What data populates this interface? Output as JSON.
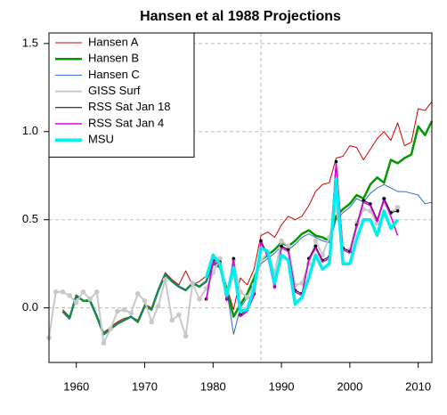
{
  "chart_data": {
    "type": "line",
    "title": "Hansen et al 1988 Projections",
    "xlim": [
      1956,
      2012
    ],
    "xticks": [
      1960,
      1970,
      1980,
      1990,
      2000,
      2010
    ],
    "ylim": [
      -0.31,
      1.56
    ],
    "yticks": [
      {
        "value": 0,
        "label": "0.0"
      },
      0.5,
      {
        "value": 1,
        "label": "1.0"
      },
      1.5
    ],
    "grid": true,
    "vline": 1987,
    "legend": "top-left",
    "series": [
      {
        "name": "Hansen A",
        "color": "#cc0000",
        "width": 1,
        "x": [
          1958,
          1959,
          1960,
          1961,
          1962,
          1963,
          1964,
          1965,
          1966,
          1967,
          1968,
          1969,
          1970,
          1971,
          1972,
          1973,
          1974,
          1975,
          1976,
          1977,
          1978,
          1979,
          1980,
          1981,
          1982,
          1983,
          1984,
          1985,
          1986,
          1987,
          1988,
          1989,
          1990,
          1991,
          1992,
          1993,
          1994,
          1995,
          1996,
          1997,
          1998,
          1999,
          2000,
          2001,
          2002,
          2003,
          2004,
          2005,
          2006,
          2007,
          2008,
          2009,
          2010,
          2011,
          2012
        ],
        "values": [
          -0.01,
          -0.05,
          0.06,
          0.04,
          0.05,
          -0.04,
          -0.14,
          -0.11,
          -0.08,
          -0.06,
          -0.05,
          -0.07,
          0.02,
          0.0,
          0.11,
          0.2,
          0.16,
          0.13,
          0.21,
          0.13,
          0.15,
          0.18,
          0.26,
          0.24,
          0.12,
          -0.01,
          0.17,
          0.13,
          0.22,
          0.41,
          0.43,
          0.4,
          0.47,
          0.52,
          0.5,
          0.52,
          0.58,
          0.66,
          0.7,
          0.71,
          0.85,
          0.86,
          0.92,
          0.91,
          0.84,
          0.9,
          0.96,
          1.0,
          0.95,
          1.05,
          0.92,
          0.94,
          1.13,
          1.12,
          1.17
        ]
      },
      {
        "name": "Hansen B",
        "color": "#009900",
        "width": 2.5,
        "x": [
          1958,
          1959,
          1960,
          1961,
          1962,
          1963,
          1964,
          1965,
          1966,
          1967,
          1968,
          1969,
          1970,
          1971,
          1972,
          1973,
          1974,
          1975,
          1976,
          1977,
          1978,
          1979,
          1980,
          1981,
          1982,
          1983,
          1984,
          1985,
          1986,
          1987,
          1988,
          1989,
          1990,
          1991,
          1992,
          1993,
          1994,
          1995,
          1996,
          1997,
          1998,
          1999,
          2000,
          2001,
          2002,
          2003,
          2004,
          2005,
          2006,
          2007,
          2008,
          2009,
          2010,
          2011,
          2012
        ],
        "values": [
          -0.02,
          -0.06,
          0.07,
          0.04,
          0.04,
          -0.05,
          -0.15,
          -0.12,
          -0.09,
          -0.07,
          -0.05,
          -0.08,
          0.01,
          -0.01,
          0.1,
          0.19,
          0.15,
          0.12,
          0.1,
          0.14,
          0.12,
          0.15,
          0.25,
          0.23,
          0.1,
          -0.05,
          0.02,
          0.08,
          0.17,
          0.27,
          0.3,
          0.33,
          0.37,
          0.35,
          0.38,
          0.42,
          0.44,
          0.41,
          0.4,
          0.38,
          0.52,
          0.56,
          0.59,
          0.64,
          0.62,
          0.7,
          0.74,
          0.71,
          0.84,
          0.82,
          0.85,
          0.87,
          1.03,
          0.98,
          1.06
        ]
      },
      {
        "name": "Hansen C",
        "color": "#3366cc",
        "width": 1,
        "x": [
          1958,
          1959,
          1960,
          1961,
          1962,
          1963,
          1964,
          1965,
          1966,
          1967,
          1968,
          1969,
          1970,
          1971,
          1972,
          1973,
          1974,
          1975,
          1976,
          1977,
          1978,
          1979,
          1980,
          1981,
          1982,
          1983,
          1984,
          1985,
          1986,
          1987,
          1988,
          1989,
          1990,
          1991,
          1992,
          1993,
          1994,
          1995,
          1996,
          1997,
          1998,
          1999,
          2000,
          2001,
          2002,
          2003,
          2004,
          2005,
          2006,
          2007,
          2008,
          2009,
          2010,
          2011,
          2012
        ],
        "values": [
          -0.02,
          -0.06,
          0.07,
          0.04,
          0.04,
          -0.05,
          -0.15,
          -0.12,
          -0.09,
          -0.07,
          -0.05,
          -0.08,
          0.01,
          -0.01,
          0.1,
          0.19,
          0.15,
          0.12,
          0.1,
          0.14,
          0.12,
          0.15,
          0.25,
          0.23,
          0.1,
          -0.15,
          0.0,
          0.06,
          0.15,
          0.25,
          0.28,
          0.31,
          0.35,
          0.33,
          0.36,
          0.4,
          0.42,
          0.4,
          0.38,
          0.37,
          0.5,
          0.54,
          0.57,
          0.62,
          0.6,
          0.65,
          0.68,
          0.7,
          0.68,
          0.66,
          0.66,
          0.65,
          0.64,
          0.59,
          0.6
        ]
      },
      {
        "name": "GISS Surf",
        "color": "#c8c8c8",
        "width": 2,
        "markers": true,
        "x": [
          1956,
          1957,
          1958,
          1959,
          1960,
          1961,
          1962,
          1963,
          1964,
          1965,
          1966,
          1967,
          1968,
          1969,
          1970,
          1971,
          1972,
          1973,
          1974,
          1975,
          1976,
          1977,
          1978,
          1979,
          1980,
          1981,
          1982,
          1983,
          1984,
          1985,
          1986,
          1987,
          1988,
          1989,
          1990,
          1991,
          1992,
          1993,
          1994,
          1995,
          1996,
          1997,
          1998,
          1999,
          2000,
          2001,
          2002,
          2003,
          2004,
          2005,
          2006,
          2007
        ],
        "values": [
          -0.17,
          0.09,
          0.09,
          0.07,
          0.03,
          0.09,
          0.05,
          0.09,
          -0.2,
          -0.12,
          -0.02,
          -0.01,
          -0.03,
          0.08,
          0.04,
          -0.08,
          0.01,
          0.16,
          -0.07,
          -0.04,
          -0.16,
          0.14,
          0.05,
          0.11,
          0.2,
          0.28,
          0.08,
          0.27,
          0.09,
          0.06,
          0.13,
          0.27,
          0.31,
          0.2,
          0.38,
          0.35,
          0.13,
          0.14,
          0.25,
          0.38,
          0.3,
          0.4,
          0.57,
          0.33,
          0.33,
          0.48,
          0.56,
          0.55,
          0.48,
          0.62,
          0.54,
          0.57
        ]
      },
      {
        "name": "RSS Sat Jan 18",
        "color": "#000000",
        "width": 1,
        "markers": true,
        "x": [
          1979,
          1980,
          1981,
          1982,
          1983,
          1984,
          1985,
          1986,
          1987,
          1988,
          1989,
          1990,
          1991,
          1992,
          1993,
          1994,
          1995,
          1996,
          1997,
          1998,
          1999,
          2000,
          2001,
          2002,
          2003,
          2004,
          2005,
          2006,
          2007
        ],
        "values": [
          0.05,
          0.27,
          0.26,
          0.05,
          0.28,
          -0.04,
          -0.01,
          0.08,
          0.38,
          0.3,
          0.12,
          0.35,
          0.33,
          0.1,
          0.08,
          0.28,
          0.35,
          0.27,
          0.29,
          0.83,
          0.34,
          0.32,
          0.47,
          0.61,
          0.59,
          0.5,
          0.62,
          0.54,
          0.55
        ]
      },
      {
        "name": "RSS Sat Jan 4",
        "color": "#dd00dd",
        "width": 1.5,
        "x": [
          1979,
          1980,
          1981,
          1982,
          1983,
          1984,
          1985,
          1986,
          1987,
          1988,
          1989,
          1990,
          1991,
          1992,
          1993,
          1994,
          1995,
          1996,
          1997,
          1998,
          1999,
          2000,
          2001,
          2002,
          2003,
          2004,
          2005,
          2006,
          2007
        ],
        "values": [
          0.04,
          0.26,
          0.25,
          0.04,
          0.27,
          -0.05,
          -0.02,
          0.07,
          0.37,
          0.29,
          0.11,
          0.34,
          0.32,
          0.09,
          0.07,
          0.27,
          0.34,
          0.26,
          0.28,
          0.82,
          0.33,
          0.31,
          0.46,
          0.6,
          0.58,
          0.49,
          0.61,
          0.52,
          0.41
        ]
      },
      {
        "name": "MSU",
        "color": "#00eeee",
        "width": 3.5,
        "x": [
          1979,
          1980,
          1981,
          1982,
          1983,
          1984,
          1985,
          1986,
          1987,
          1988,
          1989,
          1990,
          1991,
          1992,
          1993,
          1994,
          1995,
          1996,
          1997,
          1998,
          1999,
          2000,
          2001,
          2002,
          2003,
          2004,
          2005,
          2006,
          2007
        ],
        "values": [
          0.17,
          0.3,
          0.25,
          0.07,
          0.23,
          -0.02,
          -0.01,
          0.11,
          0.34,
          0.32,
          0.14,
          0.3,
          0.27,
          0.02,
          0.06,
          0.17,
          0.3,
          0.22,
          0.25,
          0.73,
          0.25,
          0.25,
          0.39,
          0.5,
          0.5,
          0.41,
          0.55,
          0.45,
          0.5
        ]
      }
    ]
  }
}
